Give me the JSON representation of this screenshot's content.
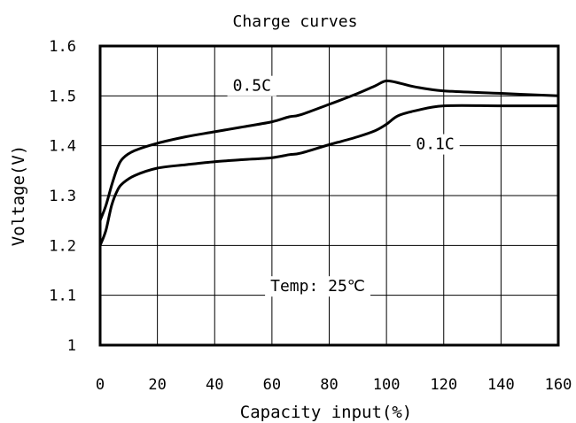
{
  "chart_data": {
    "type": "line",
    "title": "Charge curves",
    "xlabel": "Capacity input(%)",
    "ylabel": "Voltage(V)",
    "xlim": [
      0,
      160
    ],
    "ylim": [
      1.0,
      1.6
    ],
    "xticks": [
      0,
      20,
      40,
      60,
      80,
      100,
      120,
      140,
      160
    ],
    "xtick_labels": [
      "0",
      "20",
      "40",
      "60",
      "80",
      "100",
      "120",
      "140",
      "160"
    ],
    "yticks": [
      1.0,
      1.1,
      1.2,
      1.3,
      1.4,
      1.5,
      1.6
    ],
    "ytick_labels": [
      "1",
      "1.1",
      "1.2",
      "1.3",
      "1.4",
      "1.5",
      "1.6"
    ],
    "grid": true,
    "legend": "none",
    "series": [
      {
        "name": "0.5C",
        "x": [
          0,
          2,
          4,
          6,
          8,
          12,
          20,
          30,
          40,
          50,
          60,
          66,
          70,
          80,
          90,
          96,
          100,
          105,
          110,
          120,
          140,
          160
        ],
        "y": [
          1.25,
          1.28,
          1.32,
          1.355,
          1.375,
          1.39,
          1.405,
          1.418,
          1.428,
          1.438,
          1.448,
          1.458,
          1.462,
          1.483,
          1.505,
          1.52,
          1.53,
          1.525,
          1.518,
          1.51,
          1.505,
          1.5
        ]
      },
      {
        "name": "0.1C",
        "x": [
          0,
          2,
          4,
          6,
          8,
          12,
          20,
          30,
          40,
          50,
          60,
          66,
          70,
          80,
          90,
          96,
          100,
          104,
          110,
          120,
          140,
          160
        ],
        "y": [
          1.2,
          1.23,
          1.28,
          1.31,
          1.325,
          1.34,
          1.355,
          1.362,
          1.368,
          1.372,
          1.376,
          1.382,
          1.385,
          1.402,
          1.418,
          1.43,
          1.443,
          1.46,
          1.47,
          1.48,
          1.48,
          1.48
        ]
      }
    ],
    "annotations": [
      {
        "text": "0.5C",
        "x": 53,
        "y": 1.51
      },
      {
        "text": "0.1C",
        "x": 117,
        "y": 1.393
      },
      {
        "text": "Temp: 25℃",
        "x": 76,
        "y": 1.108
      }
    ]
  }
}
